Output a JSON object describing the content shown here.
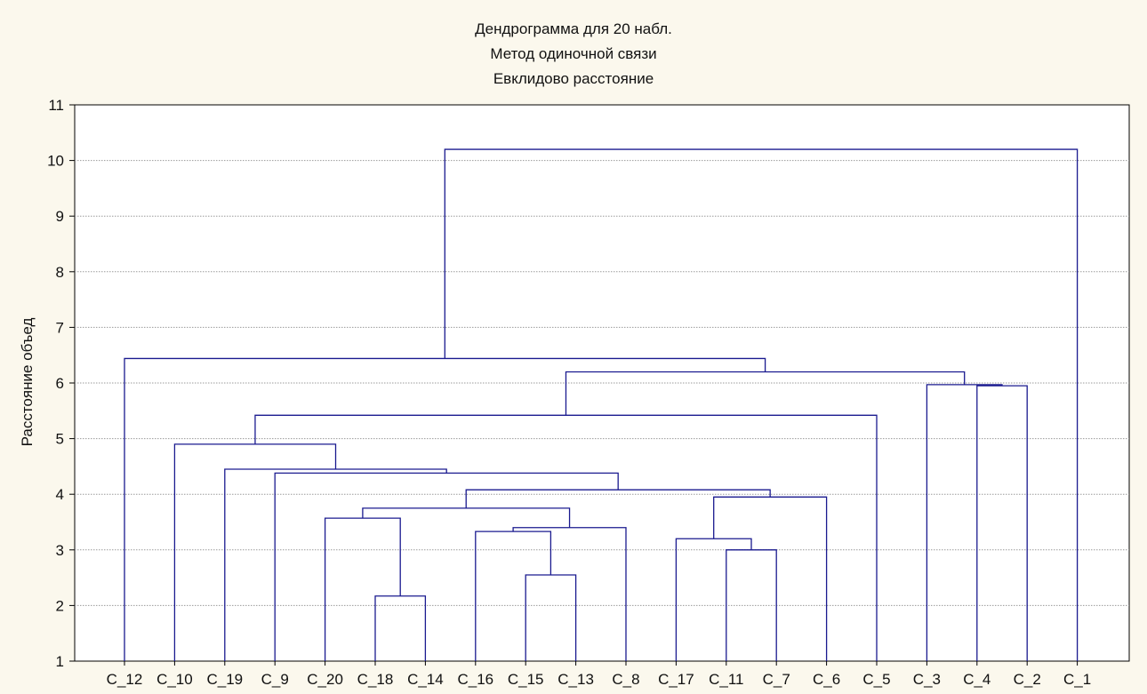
{
  "chart_data": {
    "type": "dendrogram",
    "title": [
      "Дендрограмма для 20 набл.",
      "Метод одиночной связи",
      "Евклидово расстояние"
    ],
    "ylabel": "Расстояние объед",
    "xlabel": "",
    "ylim": [
      1,
      11
    ],
    "yticks": [
      1,
      2,
      3,
      4,
      5,
      6,
      7,
      8,
      9,
      10,
      11
    ],
    "grid": true,
    "leaves": [
      "C_12",
      "C_10",
      "C_19",
      "C_9",
      "C_20",
      "C_18",
      "C_14",
      "C_16",
      "C_15",
      "C_13",
      "C_8",
      "C_17",
      "C_11",
      "C_7",
      "C_6",
      "C_5",
      "C_3",
      "C_4",
      "C_2",
      "C_1"
    ],
    "merges": [
      {
        "id": "m1",
        "left": "C_18",
        "right": "C_14",
        "height": 2.17
      },
      {
        "id": "m2",
        "left": "C_15",
        "right": "C_13",
        "height": 2.55
      },
      {
        "id": "m3",
        "left": "C_11",
        "right": "C_7",
        "height": 3.0
      },
      {
        "id": "m4",
        "left": "C_17",
        "right": "m3",
        "height": 3.2
      },
      {
        "id": "m5",
        "left": "C_16",
        "right": "m2",
        "height": 3.33
      },
      {
        "id": "m6",
        "left": "m5",
        "right": "C_8",
        "height": 3.4
      },
      {
        "id": "m7",
        "left": "C_20",
        "right": "m1",
        "height": 3.57
      },
      {
        "id": "m8",
        "left": "m7",
        "right": "m6",
        "height": 3.75
      },
      {
        "id": "m9",
        "left": "m4",
        "right": "C_6",
        "height": 3.95
      },
      {
        "id": "m10",
        "left": "m8",
        "right": "m9",
        "height": 4.08
      },
      {
        "id": "m11",
        "left": "C_9",
        "right": "m10",
        "height": 4.38
      },
      {
        "id": "m12",
        "left": "C_19",
        "right": "m11",
        "height": 4.45
      },
      {
        "id": "m13",
        "left": "C_10",
        "right": "m12",
        "height": 4.9
      },
      {
        "id": "m14",
        "left": "m13",
        "right": "C_5",
        "height": 5.42
      },
      {
        "id": "m15",
        "left": "C_2",
        "right": "C_4",
        "height": 5.95
      },
      {
        "id": "m16",
        "left": "C_3",
        "right": "m15",
        "height": 5.97
      },
      {
        "id": "m17",
        "left": "m14",
        "right": "m16",
        "height": 6.2
      },
      {
        "id": "m18",
        "left": "C_12",
        "right": "m17",
        "height": 6.44
      },
      {
        "id": "m19",
        "left": "m18",
        "right": "C_1",
        "height": 10.2
      }
    ]
  }
}
